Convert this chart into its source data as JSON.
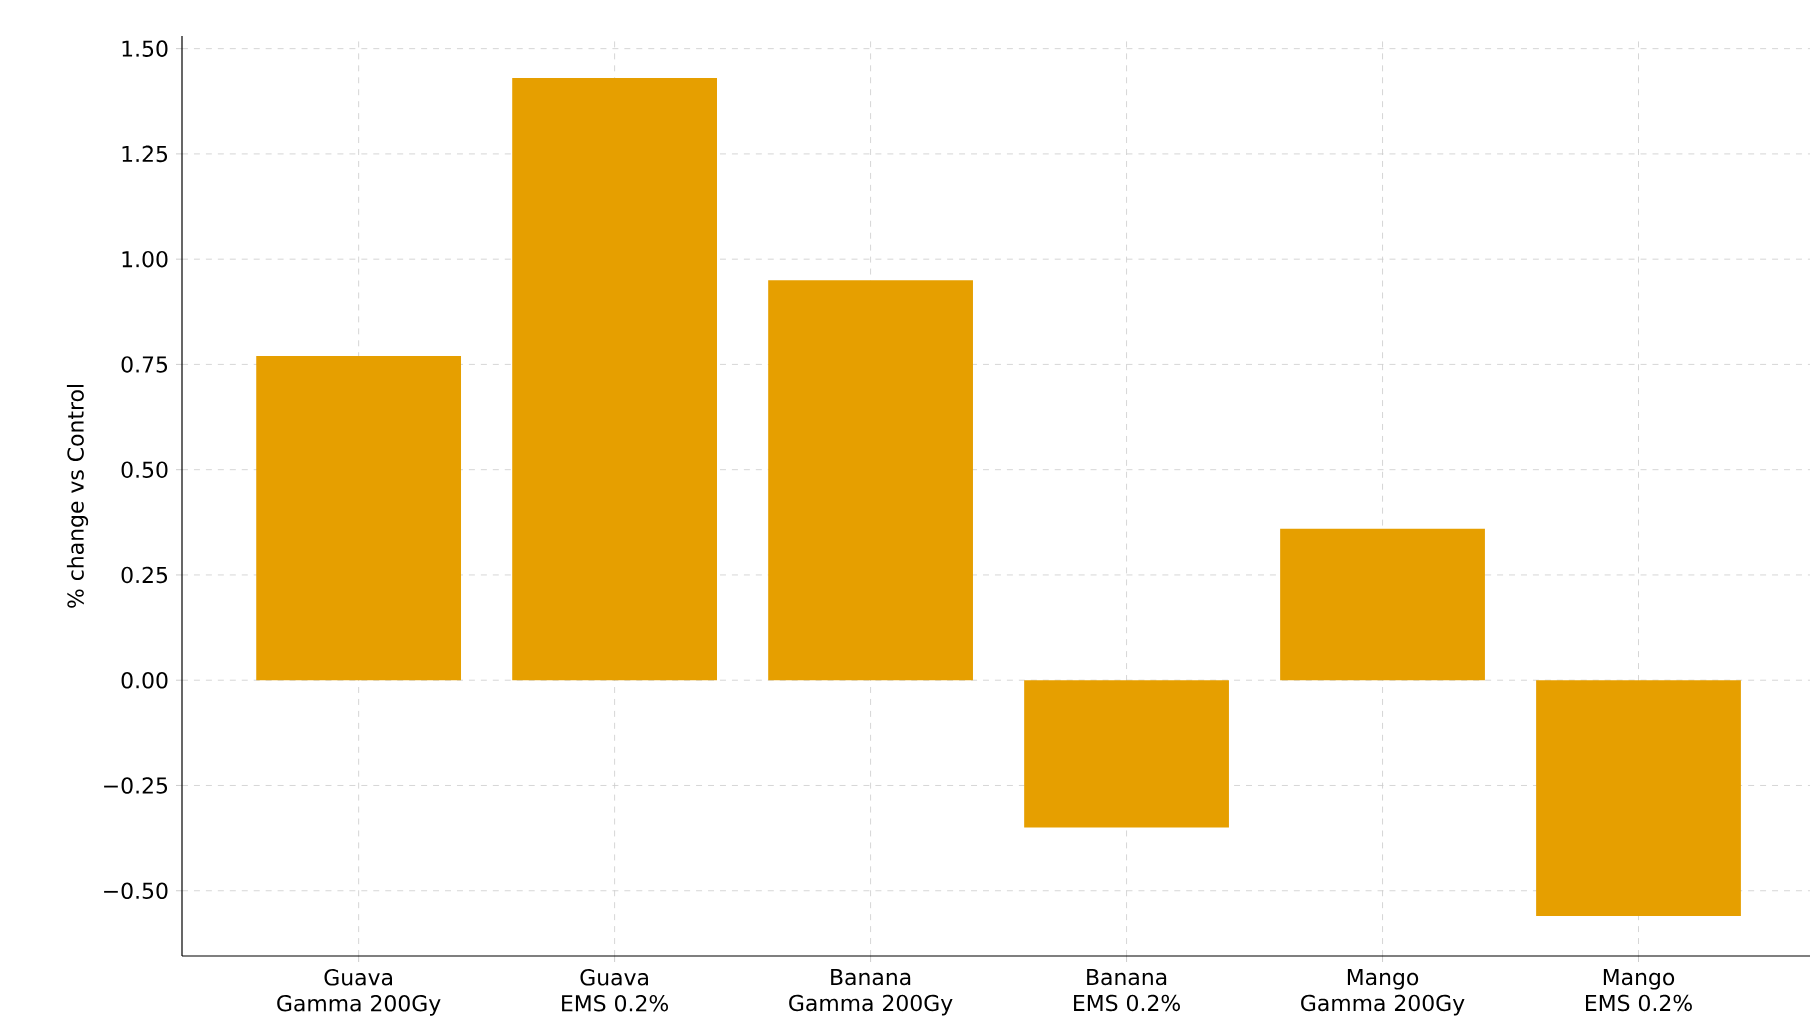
{
  "chart_data": {
    "type": "bar",
    "ylabel": "% change vs Control",
    "categories": [
      "Guava\nGamma 200Gy",
      "Guava\nEMS 0.2%",
      "Banana\nGamma 200Gy",
      "Banana\nEMS 0.2%",
      "Mango\nGamma 200Gy",
      "Mango\nEMS 0.2%"
    ],
    "values": [
      0.77,
      1.43,
      0.95,
      -0.35,
      0.36,
      -0.56
    ],
    "color": "#e69f00",
    "ylim": [
      -0.655,
      1.53
    ],
    "yticks": [
      {
        "value": -0.5,
        "label": "−0.50"
      },
      {
        "value": -0.25,
        "label": "−0.25"
      },
      "0.00",
      "0.25",
      "0.50",
      "0.75",
      "1.00",
      "1.25",
      "1.50"
    ],
    "grid": true
  }
}
